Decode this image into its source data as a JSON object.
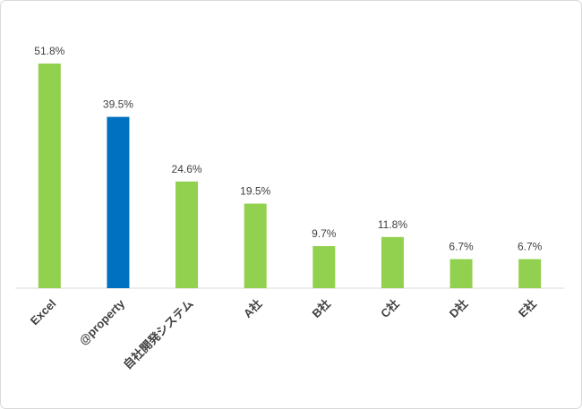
{
  "chart_data": {
    "type": "bar",
    "categories": [
      "Excel",
      "@property",
      "自社開発システム",
      "A社",
      "B社",
      "C社",
      "D社",
      "E社"
    ],
    "values": [
      51.8,
      39.5,
      24.6,
      19.5,
      9.7,
      11.8,
      6.7,
      6.7
    ],
    "value_labels": [
      "51.8%",
      "39.5%",
      "24.6%",
      "19.5%",
      "9.7%",
      "11.8%",
      "6.7%",
      "6.7%"
    ],
    "colors": [
      "#92d050",
      "#0070c0",
      "#92d050",
      "#92d050",
      "#92d050",
      "#92d050",
      "#92d050",
      "#92d050"
    ]
  }
}
